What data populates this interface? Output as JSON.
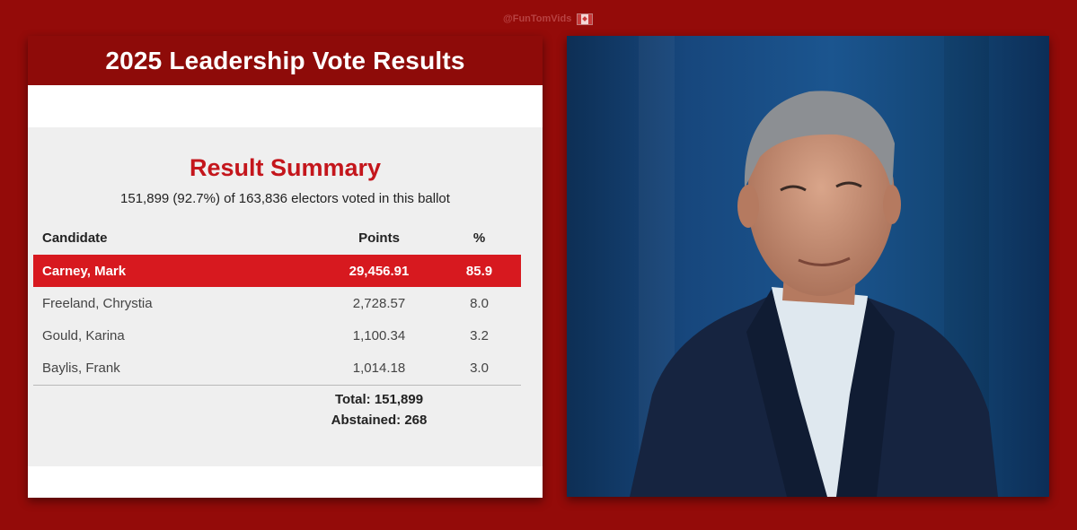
{
  "handle": "@FunTomVids",
  "card": {
    "title": "2025 Leadership Vote Results",
    "summary_title": "Result Summary",
    "summary_subtitle": "151,899 (92.7%) of 163,836 electors voted in this ballot",
    "columns": [
      "Candidate",
      "Points",
      "%"
    ],
    "rows": [
      {
        "candidate": "Carney, Mark",
        "points": "29,456.91",
        "percent": "85.9"
      },
      {
        "candidate": "Freeland, Chrystia",
        "points": "2,728.57",
        "percent": "8.0"
      },
      {
        "candidate": "Gould, Karina",
        "points": "1,100.34",
        "percent": "3.2"
      },
      {
        "candidate": "Baylis, Frank",
        "points": "1,014.18",
        "percent": "3.0"
      }
    ],
    "total": "Total: 151,899",
    "abstained": "Abstained: 268"
  },
  "colors": {
    "background": "#940b09",
    "header": "#8e0b09",
    "accent": "#c4161c",
    "winner_row": "#d7191f",
    "photo_background": "#1b558f"
  }
}
